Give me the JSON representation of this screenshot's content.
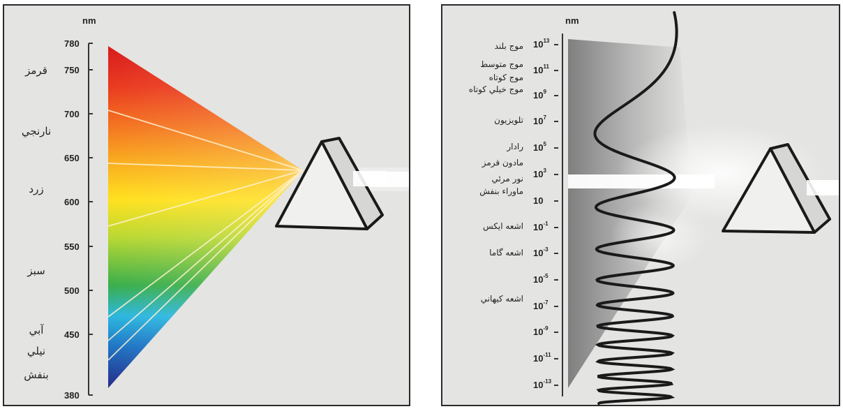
{
  "left": {
    "unit": "nm",
    "ticks": [
      "780",
      "750",
      "700",
      "650",
      "600",
      "550",
      "500",
      "450",
      "380"
    ],
    "colors": [
      "قرمز",
      "نارنجي",
      "زرد",
      "سبز",
      "آبي",
      "نيلي",
      "بنفش"
    ],
    "spectrum_colors": [
      "#d7191c",
      "#f46d20",
      "#f7a81d",
      "#ffe21f",
      "#9bcc3b",
      "#34a94c",
      "#2db6e0",
      "#1e73c5",
      "#2a2c8c"
    ]
  },
  "right": {
    "unit": "nm",
    "ticks": [
      {
        "base": "10",
        "exp": "13"
      },
      {
        "base": "10",
        "exp": "11"
      },
      {
        "base": "10",
        "exp": "9"
      },
      {
        "base": "10",
        "exp": "7"
      },
      {
        "base": "10",
        "exp": "5"
      },
      {
        "base": "10",
        "exp": "3"
      },
      {
        "base": "10",
        "exp": ""
      },
      {
        "base": "10",
        "exp": "-1"
      },
      {
        "base": "10",
        "exp": "-3"
      },
      {
        "base": "10",
        "exp": "-5"
      },
      {
        "base": "10",
        "exp": "-7"
      },
      {
        "base": "10",
        "exp": "-9"
      },
      {
        "base": "10",
        "exp": "-11"
      },
      {
        "base": "10",
        "exp": "-13"
      }
    ],
    "bands": [
      "موج بلند",
      "موج متوسط",
      "موج كوتاه",
      "موج خيلي كوتاه",
      "تلويزيون",
      "رادار",
      "مادون قرمز",
      "نور مرئي",
      "ماوراء بنفش",
      "اشعه ايكس",
      "اشعه گاما",
      "اشعه كيهاني"
    ]
  }
}
